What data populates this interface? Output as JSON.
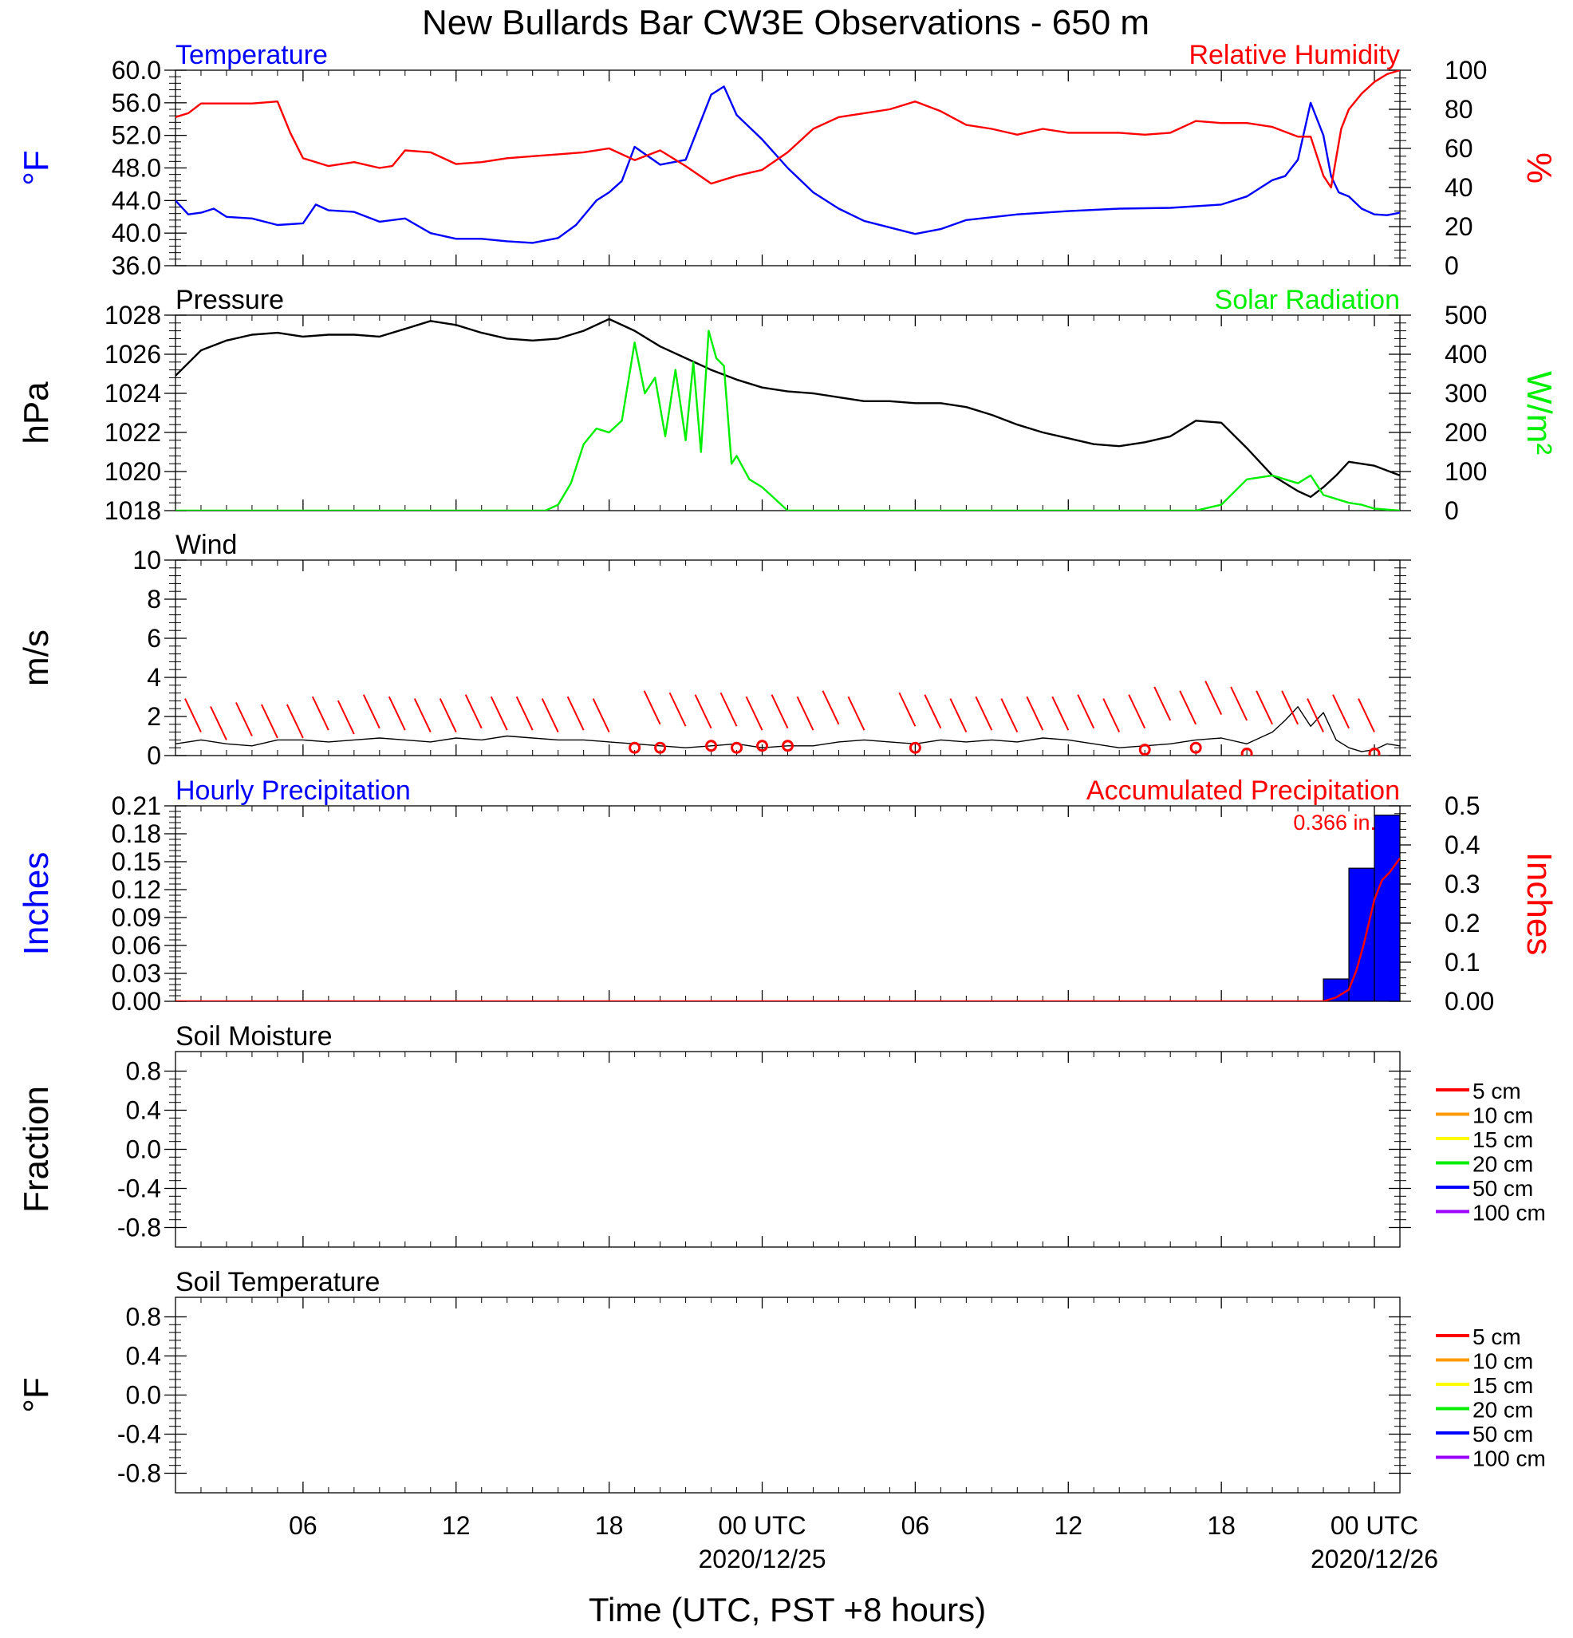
{
  "figure": {
    "title": "New Bullards Bar CW3E Observations - 650 m",
    "xlabel": "Time (UTC, PST +8 hours)",
    "x_ticks": [
      {
        "hour": 6,
        "label": "06",
        "sub": ""
      },
      {
        "hour": 12,
        "label": "12",
        "sub": ""
      },
      {
        "hour": 18,
        "label": "18",
        "sub": ""
      },
      {
        "hour": 24,
        "label": "00 UTC",
        "sub": "2020/12/25"
      },
      {
        "hour": 30,
        "label": "06",
        "sub": ""
      },
      {
        "hour": 36,
        "label": "12",
        "sub": ""
      },
      {
        "hour": 42,
        "label": "18",
        "sub": ""
      },
      {
        "hour": 48,
        "label": "00 UTC",
        "sub": "2020/12/26"
      }
    ],
    "x_range_hours": [
      1,
      49
    ]
  },
  "chart_data": [
    {
      "type": "line",
      "title_left": "Temperature",
      "title_right": "Relative Humidity",
      "ylabel_left": "°F",
      "ylabel_right": "%",
      "ylim_left": [
        36,
        60
      ],
      "ylim_right": [
        0,
        100
      ],
      "yticks_left": [
        "36.0",
        "40.0",
        "44.0",
        "48.0",
        "52.0",
        "56.0",
        "60.0"
      ],
      "yticks_right": [
        "0",
        "20",
        "40",
        "60",
        "80",
        "100"
      ],
      "series": [
        {
          "name": "Temperature",
          "color": "#0000ff",
          "axis": "left",
          "x": [
            1,
            1.5,
            2,
            2.5,
            3,
            4,
            5,
            6,
            6.5,
            7,
            8,
            9,
            10,
            11,
            12,
            13,
            14,
            15,
            16,
            16.7,
            17.5,
            18,
            18.5,
            19,
            20,
            21,
            21.5,
            22,
            22.5,
            23,
            24,
            25,
            26,
            27,
            28,
            30,
            31,
            32,
            34,
            36,
            38,
            40,
            42,
            43,
            44,
            44.5,
            45,
            45.5,
            46,
            46.3,
            46.6,
            47,
            47.5,
            48,
            48.5,
            49
          ],
          "y": [
            44,
            42.3,
            42.5,
            43,
            42,
            41.8,
            41,
            41.2,
            43.5,
            42.8,
            42.6,
            41.4,
            41.8,
            40,
            39.3,
            39.3,
            39,
            38.8,
            39.4,
            41,
            44,
            45,
            46.4,
            50.6,
            48.4,
            49,
            53,
            57,
            58,
            54.5,
            51.5,
            48,
            45,
            43,
            41.5,
            39.9,
            40.5,
            41.6,
            42.3,
            42.7,
            43,
            43.1,
            43.5,
            44.5,
            46.5,
            47,
            49,
            56,
            52,
            47,
            45,
            44.5,
            43,
            42.3,
            42.2,
            42.5
          ]
        },
        {
          "name": "Relative Humidity",
          "color": "#ff0000",
          "axis": "right",
          "x": [
            1,
            1.5,
            2,
            3,
            4,
            5,
            5.5,
            6,
            7,
            8,
            9,
            9.5,
            10,
            11,
            12,
            13,
            14,
            15,
            16,
            17,
            18,
            19,
            20,
            21,
            22,
            22.5,
            23,
            24,
            25,
            26,
            27,
            28,
            29,
            30,
            31,
            32,
            33,
            34,
            35,
            36,
            37,
            38,
            39,
            40,
            41,
            42,
            43,
            44,
            45,
            45.5,
            46,
            46.3,
            46.7,
            47,
            47.5,
            48,
            48.5,
            49
          ],
          "y": [
            76,
            78,
            83,
            83,
            83,
            84,
            68,
            55,
            51,
            53,
            50,
            51,
            59,
            58,
            52,
            53,
            55,
            56,
            57,
            58,
            60,
            54,
            59,
            51,
            42,
            44,
            46,
            49,
            58,
            70,
            76,
            78,
            80,
            84,
            79,
            72,
            70,
            67,
            70,
            68,
            68,
            68,
            67,
            68,
            74,
            73,
            73,
            71,
            66,
            66,
            46,
            40,
            70,
            80,
            88,
            94,
            98,
            100
          ]
        }
      ]
    },
    {
      "type": "line",
      "title_left": "Pressure",
      "title_right": "Solar Radiation",
      "ylabel_left": "hPa",
      "ylabel_right": "W/m²",
      "ylim_left": [
        1018,
        1028
      ],
      "ylim_right": [
        0,
        500
      ],
      "yticks_left": [
        "1018",
        "1020",
        "1022",
        "1024",
        "1026",
        "1028"
      ],
      "yticks_right": [
        "0",
        "100",
        "200",
        "300",
        "400",
        "500"
      ],
      "series": [
        {
          "name": "Pressure",
          "color": "#000000",
          "axis": "left",
          "x": [
            1,
            2,
            3,
            4,
            5,
            6,
            7,
            8,
            9,
            10,
            11,
            12,
            13,
            14,
            15,
            16,
            17,
            18,
            19,
            20,
            21,
            22,
            23,
            24,
            25,
            26,
            27,
            28,
            29,
            30,
            31,
            32,
            33,
            34,
            35,
            36,
            37,
            38,
            39,
            40,
            41,
            42,
            43,
            44,
            45,
            45.5,
            46,
            46.5,
            47,
            48,
            49
          ],
          "y": [
            1024.9,
            1026.2,
            1026.7,
            1027,
            1027.1,
            1026.9,
            1027,
            1027,
            1026.9,
            1027.3,
            1027.7,
            1027.5,
            1027.1,
            1026.8,
            1026.7,
            1026.8,
            1027.2,
            1027.8,
            1027.2,
            1026.4,
            1025.8,
            1025.2,
            1024.7,
            1024.3,
            1024.1,
            1024,
            1023.8,
            1023.6,
            1023.6,
            1023.5,
            1023.5,
            1023.3,
            1022.9,
            1022.4,
            1022,
            1021.7,
            1021.4,
            1021.3,
            1021.5,
            1021.8,
            1022.6,
            1022.5,
            1021.2,
            1019.8,
            1019,
            1018.7,
            1019.2,
            1019.8,
            1020.5,
            1020.3,
            1019.8
          ]
        },
        {
          "name": "Solar Radiation",
          "color": "#00ee00",
          "axis": "right",
          "x": [
            1,
            15.5,
            16,
            16.5,
            17,
            17.5,
            18,
            18.5,
            19,
            19.4,
            19.8,
            20.2,
            20.6,
            21,
            21.3,
            21.6,
            21.9,
            22.2,
            22.5,
            22.8,
            23,
            23.5,
            24,
            24.5,
            25,
            34,
            41,
            42,
            43,
            44,
            45,
            45.5,
            46,
            46.5,
            47,
            47.5,
            48,
            49
          ],
          "y": [
            0,
            0,
            15,
            70,
            170,
            210,
            200,
            230,
            430,
            300,
            340,
            190,
            360,
            180,
            380,
            150,
            460,
            390,
            370,
            120,
            140,
            80,
            60,
            30,
            0,
            0,
            0,
            15,
            80,
            90,
            70,
            90,
            40,
            30,
            20,
            15,
            5,
            0
          ]
        }
      ]
    },
    {
      "type": "line",
      "title_left": "Wind",
      "ylabel_left": "m/s",
      "ylim_left": [
        0,
        10
      ],
      "yticks_left": [
        "0",
        "2",
        "4",
        "6",
        "8",
        "10"
      ],
      "series": [
        {
          "name": "Wind speed",
          "color": "#000000",
          "axis": "left",
          "x": [
            1,
            2,
            3,
            4,
            5,
            6,
            7,
            8,
            9,
            10,
            11,
            12,
            13,
            14,
            15,
            16,
            17,
            18,
            19,
            20,
            21,
            22,
            23,
            24,
            25,
            26,
            27,
            28,
            29,
            30,
            31,
            32,
            33,
            34,
            35,
            36,
            37,
            38,
            39,
            40,
            41,
            42,
            43,
            44,
            44.5,
            45,
            45.5,
            46,
            46.5,
            47,
            47.5,
            48,
            48.5,
            49
          ],
          "y": [
            0.6,
            0.8,
            0.6,
            0.5,
            0.8,
            0.8,
            0.7,
            0.8,
            0.9,
            0.8,
            0.7,
            0.9,
            0.8,
            1,
            0.9,
            0.8,
            0.8,
            0.7,
            0.6,
            0.5,
            0.4,
            0.5,
            0.6,
            0.4,
            0.5,
            0.5,
            0.7,
            0.8,
            0.7,
            0.6,
            0.8,
            0.7,
            0.8,
            0.7,
            0.9,
            0.8,
            0.6,
            0.4,
            0.5,
            0.6,
            0.8,
            0.9,
            0.6,
            1.2,
            1.8,
            2.5,
            1.5,
            2.2,
            0.8,
            0.4,
            0.2,
            0.3,
            0.6,
            0.5
          ]
        },
        {
          "name": "Wind barbs",
          "color": "#ff0000",
          "axis": "left",
          "x": [
            2,
            3,
            4,
            5,
            6,
            7,
            8,
            9,
            10,
            11,
            12,
            13,
            14,
            15,
            16,
            17,
            18,
            20,
            21,
            22,
            23,
            24,
            25,
            26,
            27,
            28,
            30,
            31,
            32,
            33,
            34,
            35,
            36,
            37,
            38,
            39,
            40,
            41,
            42,
            43,
            44,
            45,
            46,
            47,
            48
          ],
          "y": [
            1.2,
            0.8,
            1,
            0.9,
            0.9,
            1.3,
            1.1,
            1.4,
            1.3,
            1.2,
            1.2,
            1.4,
            1.3,
            1.3,
            1.2,
            1.3,
            1.2,
            1.6,
            1.5,
            1.4,
            1.5,
            1.3,
            1.4,
            1.3,
            1.6,
            1.3,
            1.5,
            1.4,
            1.2,
            1.3,
            1.2,
            1.3,
            1.3,
            1.4,
            1.2,
            1.4,
            1.8,
            1.6,
            2.1,
            1.8,
            1.6,
            1.6,
            1.2,
            1.4,
            1.2
          ]
        },
        {
          "name": "Calm",
          "color": "#ff0000",
          "axis": "left",
          "x": [
            19,
            20,
            22,
            23,
            24,
            25,
            30,
            39,
            41,
            43,
            48
          ],
          "y": [
            0.4,
            0.4,
            0.5,
            0.4,
            0.5,
            0.5,
            0.4,
            0.3,
            0.4,
            0.1,
            0.1
          ]
        }
      ]
    },
    {
      "type": "bar",
      "title_left": "Hourly Precipitation",
      "title_right": "Accumulated Precipitation",
      "annotation": "0.366 in.",
      "ylabel_left": "Inches",
      "ylabel_right": "Inches",
      "ylim_left": [
        0,
        0.21
      ],
      "ylim_right": [
        0,
        0.5
      ],
      "yticks_left": [
        "0.00",
        "0.03",
        "0.06",
        "0.09",
        "0.12",
        "0.15",
        "0.18",
        "0.21"
      ],
      "yticks_right": [
        "0.00",
        "0.1",
        "0.2",
        "0.3",
        "0.4",
        "0.5"
      ],
      "bars": {
        "name": "Hourly Precipitation",
        "color": "#0000ff",
        "start": [
          46,
          47,
          48
        ],
        "end": [
          47,
          48,
          49
        ],
        "values": [
          0.024,
          0.143,
          0.2
        ]
      },
      "series": [
        {
          "name": "Accumulated Precipitation",
          "color": "#ff0000",
          "axis": "right",
          "x": [
            1,
            46,
            46.5,
            47,
            47.3,
            47.6,
            48,
            48.3,
            48.6,
            49
          ],
          "y": [
            0,
            0,
            0.01,
            0.03,
            0.08,
            0.15,
            0.26,
            0.31,
            0.33,
            0.366
          ]
        }
      ]
    },
    {
      "type": "line",
      "title_left": "Soil Moisture",
      "ylabel_left": "Fraction",
      "ylim_left": [
        -1,
        1
      ],
      "yticks_left": [
        "-0.8",
        "-0.4",
        "0.0",
        "0.4",
        "0.8"
      ],
      "legend": {
        "placement": "right",
        "items": [
          {
            "label": "5 cm",
            "color": "#ff0000"
          },
          {
            "label": "10 cm",
            "color": "#ff9900"
          },
          {
            "label": "15 cm",
            "color": "#ffff00"
          },
          {
            "label": "20 cm",
            "color": "#00ee00"
          },
          {
            "label": "50 cm",
            "color": "#0000ff"
          },
          {
            "label": "100 cm",
            "color": "#9900ff"
          }
        ]
      },
      "series": []
    },
    {
      "type": "line",
      "title_left": "Soil Temperature",
      "ylabel_left": "°F",
      "ylim_left": [
        -1,
        1
      ],
      "yticks_left": [
        "-0.8",
        "-0.4",
        "0.0",
        "0.4",
        "0.8"
      ],
      "legend": {
        "placement": "right",
        "items": [
          {
            "label": "5 cm",
            "color": "#ff0000"
          },
          {
            "label": "10 cm",
            "color": "#ff9900"
          },
          {
            "label": "15 cm",
            "color": "#ffff00"
          },
          {
            "label": "20 cm",
            "color": "#00ee00"
          },
          {
            "label": "50 cm",
            "color": "#0000ff"
          },
          {
            "label": "100 cm",
            "color": "#9900ff"
          }
        ]
      },
      "series": []
    }
  ]
}
